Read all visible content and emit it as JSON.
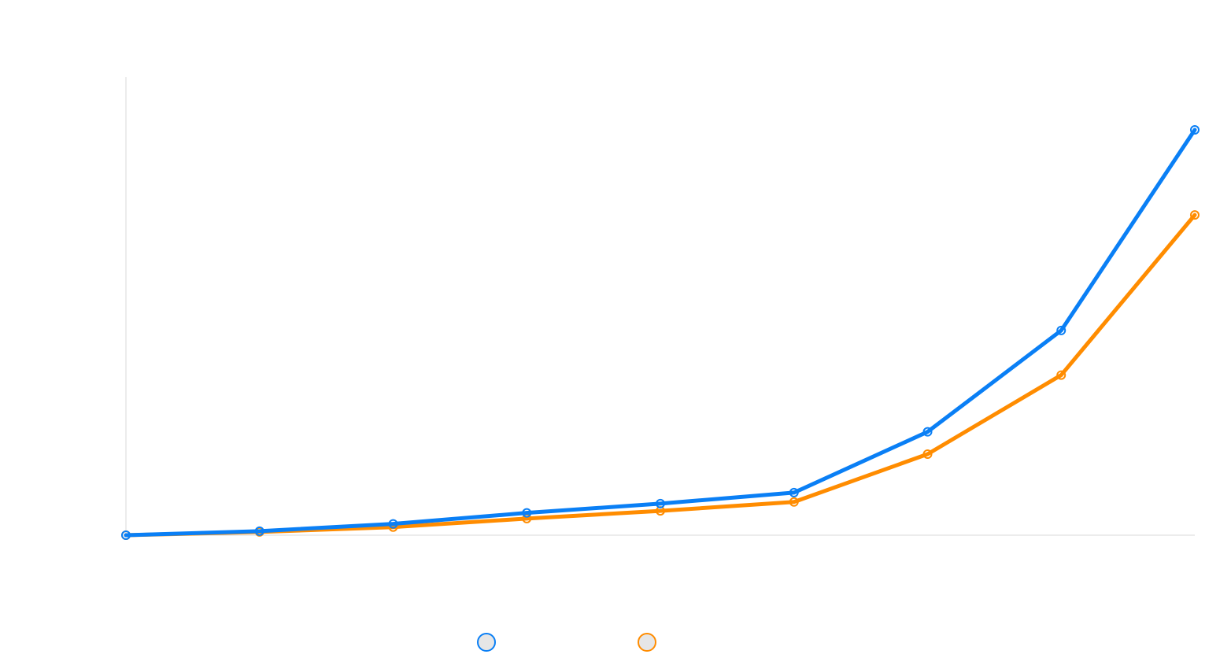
{
  "chart_data": {
    "type": "line",
    "title": "",
    "xlabel": "",
    "ylabel": "",
    "x": [
      0,
      1,
      2,
      3,
      4,
      5,
      6,
      7,
      8
    ],
    "ylim": [
      0,
      100
    ],
    "grid": false,
    "legend_position": "bottom",
    "series": [
      {
        "color": "#0a7ff5",
        "values": [
          0,
          1.0,
          2.8,
          5.5,
          7.8,
          10.5,
          25.5,
          50.5,
          100
        ]
      },
      {
        "color": "#ff8c00",
        "values": [
          0,
          0.8,
          2.0,
          4.1,
          6.0,
          8.2,
          20.0,
          39.5,
          79.0
        ]
      }
    ]
  }
}
